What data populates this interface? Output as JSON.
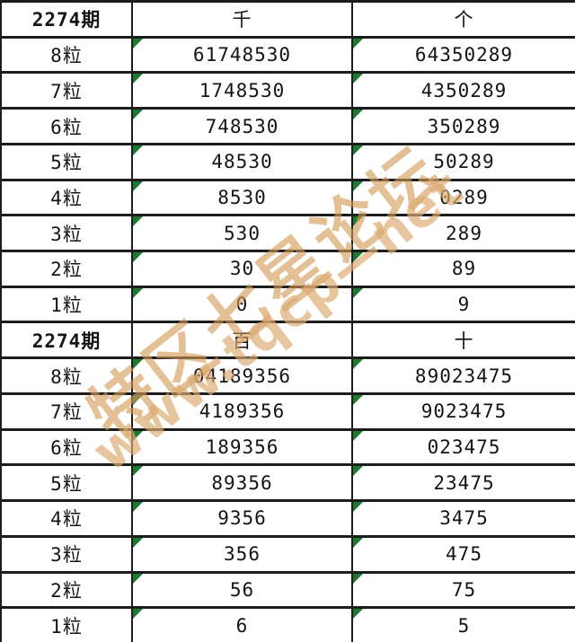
{
  "tables": [
    {
      "period": "2274期",
      "col_headers": [
        "千",
        "个"
      ],
      "rows": [
        {
          "label": "8粒",
          "values": [
            "61748530",
            "64350289"
          ]
        },
        {
          "label": "7粒",
          "values": [
            "1748530",
            "4350289"
          ]
        },
        {
          "label": "6粒",
          "values": [
            "748530",
            "350289"
          ]
        },
        {
          "label": "5粒",
          "values": [
            "48530",
            "50289"
          ]
        },
        {
          "label": "4粒",
          "values": [
            "8530",
            "0289"
          ]
        },
        {
          "label": "3粒",
          "values": [
            "530",
            "289"
          ]
        },
        {
          "label": "2粒",
          "values": [
            "30",
            "89"
          ]
        },
        {
          "label": "1粒",
          "values": [
            "0",
            "9"
          ]
        }
      ]
    },
    {
      "period": "2274期",
      "col_headers": [
        "百",
        "十"
      ],
      "rows": [
        {
          "label": "8粒",
          "values": [
            "04189356",
            "89023475"
          ]
        },
        {
          "label": "7粒",
          "values": [
            "4189356",
            "9023475"
          ]
        },
        {
          "label": "6粒",
          "values": [
            "189356",
            "023475"
          ]
        },
        {
          "label": "5粒",
          "values": [
            "89356",
            "23475"
          ]
        },
        {
          "label": "4粒",
          "values": [
            "9356",
            "3475"
          ]
        },
        {
          "label": "3粒",
          "values": [
            "356",
            "475"
          ]
        },
        {
          "label": "2粒",
          "values": [
            "56",
            "75"
          ]
        },
        {
          "label": "1粒",
          "values": [
            "6",
            "5"
          ]
        }
      ]
    }
  ],
  "watermark": {
    "line1": "特区七星论坛",
    "line2": "www.tqcp—net"
  },
  "colors": {
    "period_bg": "#f8c9a4",
    "period_text": "#732b1c",
    "header_bg": "#c7d79d",
    "grid_border": "#1d1d1d",
    "flag_triangle": "#1e7a33",
    "watermark": "#d49a58"
  }
}
